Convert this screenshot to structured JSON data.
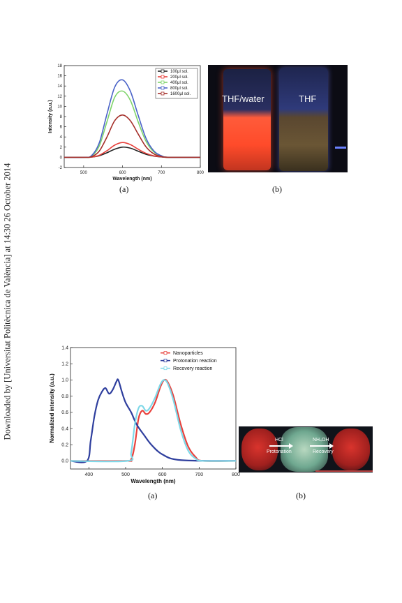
{
  "side_note": "Downloaded by [Universitat Politècnica de València] at 14:30 26 October 2014",
  "figure1": {
    "caption_a": "(a)",
    "caption_b": "(b)",
    "photo_labels": {
      "left": "THF/water",
      "right": "THF"
    }
  },
  "figure2": {
    "caption_a": "(a)",
    "caption_b": "(b)",
    "photo_labels": {
      "hcl": "HCl",
      "protonation": "Protonation",
      "nh4oh": "NH₄OH",
      "recovery": "Recovery"
    }
  },
  "chart_data": [
    {
      "type": "line",
      "title": "",
      "xlabel": "Wavelength (nm)",
      "ylabel": "Intensity (a.u.)",
      "xlim": [
        450,
        800
      ],
      "ylim": [
        -2,
        18
      ],
      "xticks": [
        500,
        600,
        700,
        800
      ],
      "yticks": [
        -2,
        0,
        2,
        4,
        6,
        8,
        10,
        12,
        14,
        16,
        18
      ],
      "legend_position": "top-right",
      "x": [
        450,
        500,
        520,
        540,
        560,
        580,
        600,
        620,
        640,
        660,
        680,
        700,
        720,
        800
      ],
      "series": [
        {
          "name": "100μl sol.",
          "color": "#222222",
          "values": [
            0,
            0,
            0.05,
            0.3,
            0.9,
            1.6,
            2.0,
            1.8,
            1.2,
            0.6,
            0.25,
            0.08,
            0,
            0
          ]
        },
        {
          "name": "200μl sol.",
          "color": "#e8413c",
          "values": [
            0,
            0,
            0.05,
            0.4,
            1.3,
            2.4,
            2.9,
            2.5,
            1.6,
            0.8,
            0.3,
            0.1,
            0,
            0
          ]
        },
        {
          "name": "400μl sol.",
          "color": "#7fd46a",
          "values": [
            0,
            0,
            0.2,
            2.2,
            7.0,
            11.8,
            13.0,
            11.2,
            7.0,
            3.2,
            1.1,
            0.3,
            0,
            0
          ]
        },
        {
          "name": "800μl sol.",
          "color": "#4a63c8",
          "values": [
            0,
            0,
            0.3,
            2.8,
            8.5,
            13.8,
            15.2,
            13.0,
            8.3,
            3.8,
            1.3,
            0.3,
            0,
            0
          ]
        },
        {
          "name": "1600μl sol.",
          "color": "#a52f2a",
          "values": [
            0,
            0,
            0.1,
            1.2,
            4.0,
            7.2,
            8.3,
            7.2,
            4.6,
            2.1,
            0.7,
            0.15,
            0,
            0
          ]
        }
      ]
    },
    {
      "type": "line",
      "title": "",
      "xlabel": "Wavelength (nm)",
      "ylabel": "Normalized intensity (a.u.)",
      "xlim": [
        350,
        800
      ],
      "ylim": [
        -0.1,
        1.4
      ],
      "xticks": [
        400,
        500,
        600,
        700,
        800
      ],
      "yticks": [
        0.0,
        0.2,
        0.4,
        0.6,
        0.8,
        1.0,
        1.2,
        1.4
      ],
      "legend_position": "top-right",
      "series": [
        {
          "name": "Nanoparticles",
          "color": "#e8413c",
          "x": [
            350,
            500,
            515,
            525,
            535,
            545,
            555,
            565,
            580,
            595,
            605,
            615,
            630,
            650,
            670,
            690,
            710,
            800
          ],
          "values": [
            0,
            0,
            0.02,
            0.2,
            0.52,
            0.62,
            0.58,
            0.6,
            0.72,
            0.92,
            1.0,
            0.97,
            0.8,
            0.45,
            0.18,
            0.05,
            0,
            0
          ]
        },
        {
          "name": "Protonation reaction",
          "color": "#2f3f9e",
          "x": [
            350,
            395,
            405,
            415,
            425,
            435,
            445,
            455,
            465,
            475,
            480,
            490,
            500,
            515,
            530,
            550,
            570,
            600,
            650,
            800
          ],
          "values": [
            0,
            0,
            0.25,
            0.55,
            0.75,
            0.85,
            0.9,
            0.83,
            0.88,
            0.98,
            1.0,
            0.85,
            0.72,
            0.6,
            0.45,
            0.32,
            0.2,
            0.08,
            0.01,
            0
          ]
        },
        {
          "name": "Recovery reaction",
          "color": "#7fd8e8",
          "x": [
            350,
            505,
            515,
            525,
            535,
            545,
            555,
            565,
            580,
            595,
            605,
            615,
            630,
            650,
            670,
            690,
            710,
            800
          ],
          "values": [
            0,
            0,
            0.1,
            0.45,
            0.65,
            0.68,
            0.62,
            0.65,
            0.78,
            0.95,
            1.0,
            0.95,
            0.75,
            0.38,
            0.13,
            0.03,
            0,
            0
          ]
        }
      ]
    }
  ]
}
